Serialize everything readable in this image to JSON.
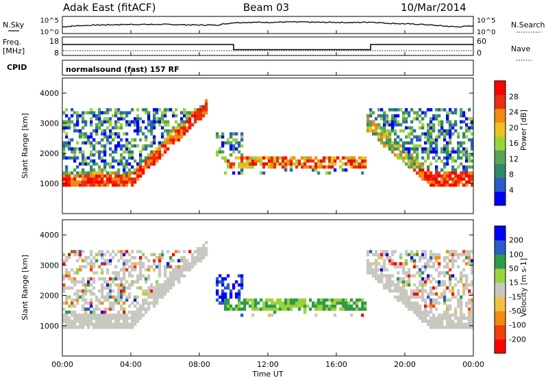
{
  "header": {
    "station": "Adak East (fitACF)",
    "beam": "Beam 03",
    "date": "10/Mar/2014"
  },
  "aux_panels": {
    "nsky_label": "N.Sky",
    "nsearch_label": "N.Search",
    "freq_label_top": "Freq.",
    "freq_label_unit": "[MHz]",
    "nave_label": "Nave",
    "cpid_label": "CPID",
    "cpid_text": "normalsound (fast) 157 RF",
    "noise_ticks_left": [
      "10^5",
      "10^0"
    ],
    "noise_ticks_right": [
      "10^5",
      "10^0"
    ],
    "freq_ticks_left": [
      "18",
      "8"
    ],
    "nave_ticks_right": [
      "60",
      "0"
    ]
  },
  "chart_data": [
    {
      "type": "line",
      "name": "noise",
      "x": [
        0,
        1,
        2,
        3,
        4,
        5,
        6,
        7,
        8,
        9,
        10,
        11,
        12,
        13,
        14,
        15,
        16,
        17,
        18,
        19,
        20,
        21,
        22,
        23,
        24
      ],
      "y_log": [
        2.0,
        2.4,
        2.6,
        2.7,
        2.8,
        2.8,
        2.8,
        2.7,
        2.6,
        2.6,
        3.4,
        3.5,
        3.5,
        3.6,
        3.6,
        3.5,
        3.5,
        3.4,
        3.6,
        3.2,
        3.0,
        2.8,
        2.4,
        2.0,
        2.3
      ],
      "xlim": [
        0,
        24
      ]
    },
    {
      "type": "line",
      "name": "frequency",
      "x": [
        0,
        10,
        10,
        18,
        18,
        24
      ],
      "y": [
        14.0,
        14.0,
        11.0,
        11.0,
        14.0,
        14.0
      ],
      "ylim": [
        8,
        18
      ],
      "xlim": [
        0,
        24
      ]
    },
    {
      "type": "heatmap",
      "ylabel": "Slant Range [km]",
      "xlabel": "",
      "xlim": [
        0,
        24
      ],
      "ylim": [
        0,
        4500
      ],
      "x_ticks": [
        "00:00",
        "04:00",
        "08:00",
        "12:00",
        "16:00",
        "20:00",
        "00:00"
      ],
      "y_ticks": [
        "1000",
        "2000",
        "3000",
        "4000"
      ],
      "colorbar_label": "Power [dB]",
      "colorbar_ticks": [
        "4",
        "8",
        "12",
        "16",
        "20",
        "24",
        "28"
      ],
      "colorbar_range": [
        0,
        32
      ]
    },
    {
      "type": "heatmap",
      "ylabel": "Slant Range [km]",
      "xlabel": "Time UT",
      "xlim": [
        0,
        24
      ],
      "ylim": [
        0,
        4500
      ],
      "x_ticks": [
        "00:00",
        "04:00",
        "08:00",
        "12:00",
        "16:00",
        "20:00",
        "00:00"
      ],
      "y_ticks": [
        "1000",
        "2000",
        "3000",
        "4000"
      ],
      "colorbar_label": "Velocity [m s-1]",
      "colorbar_ticks": [
        "200",
        "100",
        "50",
        "15",
        "-15",
        "-50",
        "-100",
        "-200"
      ]
    }
  ]
}
